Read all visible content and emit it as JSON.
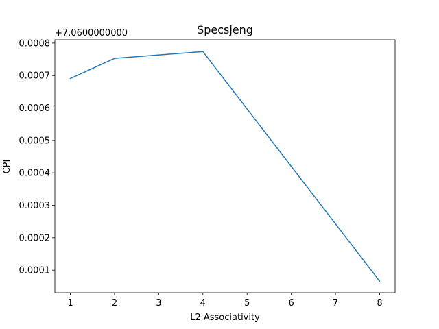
{
  "chart_data": {
    "type": "line",
    "title": "Specsjeng",
    "xlabel": "L2 Associativity",
    "ylabel": "CPI",
    "offset_text": "+7.0600000000",
    "xlim": [
      0.65,
      8.35
    ],
    "ylim": [
      3.06e-05,
      0.0008104
    ],
    "x_ticks": [
      1,
      2,
      3,
      4,
      5,
      6,
      7,
      8
    ],
    "x_tick_labels": [
      "1",
      "2",
      "3",
      "4",
      "5",
      "6",
      "7",
      "8"
    ],
    "y_ticks": [
      0.0001,
      0.0002,
      0.0003,
      0.0004,
      0.0005,
      0.0006,
      0.0007,
      0.0008
    ],
    "y_tick_labels": [
      "0.0001",
      "0.0002",
      "0.0003",
      "0.0004",
      "0.0005",
      "0.0006",
      "0.0007",
      "0.0008"
    ],
    "grid": false,
    "series": [
      {
        "color": "#1f77b4",
        "x": [
          1,
          2,
          4,
          8
        ],
        "y": [
          0.000691,
          0.000753,
          0.000774,
          6.6e-05
        ]
      }
    ]
  }
}
